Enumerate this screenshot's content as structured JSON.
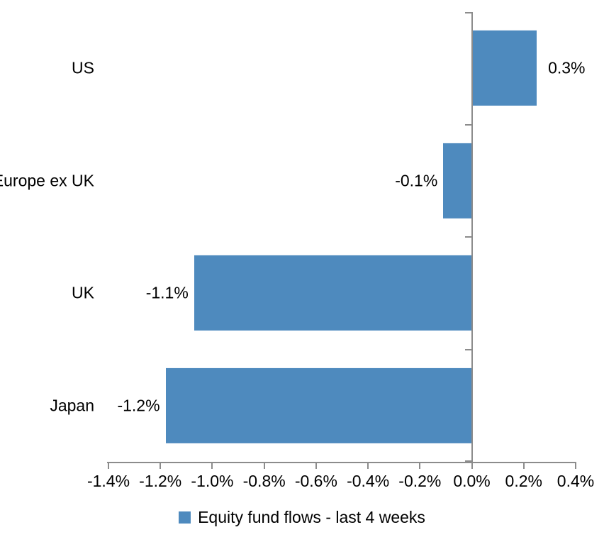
{
  "chart_data": {
    "type": "bar",
    "orientation": "horizontal",
    "categories": [
      "US",
      "Europe ex UK",
      "UK",
      "Japan"
    ],
    "values": [
      0.3,
      -0.1,
      -1.1,
      -1.2
    ],
    "values_precise": [
      0.25,
      -0.11,
      -1.07,
      -1.18
    ],
    "data_labels": [
      "0.3%",
      "-0.1%",
      "-1.1%",
      "-1.2%"
    ],
    "series_name": "Equity fund flows - last 4 weeks",
    "xlim": [
      -1.4,
      0.4
    ],
    "x_tick_values": [
      -1.4,
      -1.2,
      -1.0,
      -0.8,
      -0.6,
      -0.4,
      -0.2,
      0.0,
      0.2,
      0.4
    ],
    "x_tick_labels": [
      "-1.4%",
      "-1.2%",
      "-1.0%",
      "-0.8%",
      "-0.6%",
      "-0.4%",
      "-0.2%",
      "0.0%",
      "0.2%",
      "0.4%"
    ],
    "grid": false,
    "legend_position": "bottom",
    "bar_color": "#4E8ABE",
    "axis_color": "#8C8C8C",
    "text_color": "#000000",
    "background_color": "#FFFFFF"
  }
}
